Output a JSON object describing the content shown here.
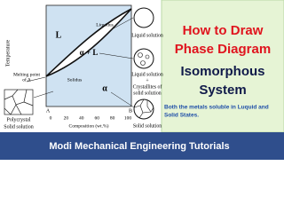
{
  "diagram": {
    "y_axis_label": "Temperature",
    "melting_point_label": [
      "Melting point",
      "of A"
    ],
    "liquidus": "Liquidus",
    "solidus": "Solidus",
    "region_liquid": "L",
    "region_two_phase": "α + L",
    "region_solid": "α",
    "x_axis": {
      "ticks": [
        0,
        20,
        40,
        60,
        80,
        100
      ],
      "left_end": "A",
      "right_end": "B",
      "label": "Composition (wt.%)"
    },
    "polycrystal_label": [
      "Polycrystal",
      "Solid solution"
    ],
    "microstructures": [
      {
        "lines": [
          "Liquid solution"
        ]
      },
      {
        "lines": [
          "Liquid solution",
          "+",
          "Crystallites of",
          "solid solution"
        ]
      },
      {
        "lines": [
          "Solid solution"
        ]
      }
    ]
  },
  "title_panel": {
    "lines": [
      "How to Draw",
      "Phase Diagram",
      "Isomorphous",
      "System"
    ],
    "description": [
      "Both the metals soluble in Luquid and",
      "Solid States."
    ]
  },
  "footer": {
    "text": "Modi Mechanical Engineering Tutorials"
  }
}
